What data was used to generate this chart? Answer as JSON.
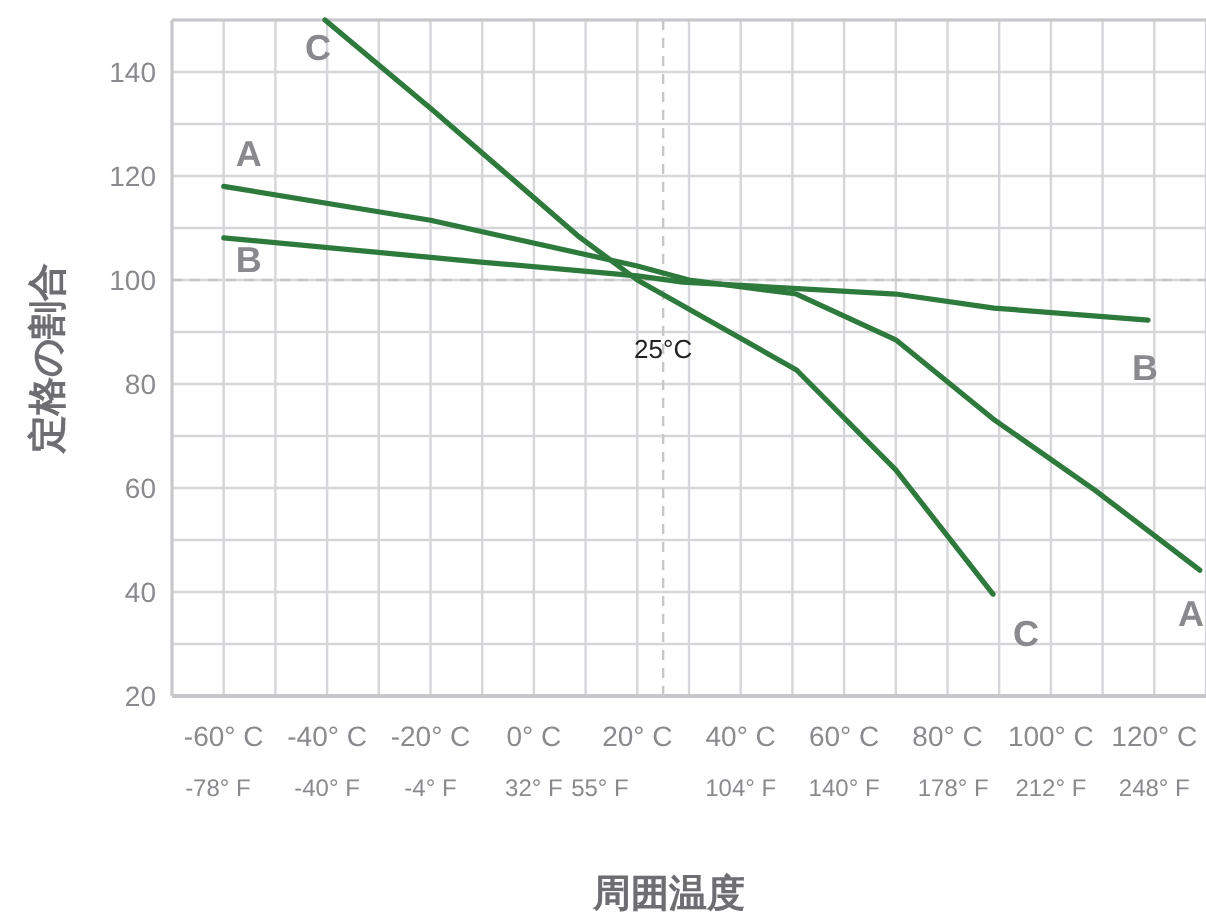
{
  "chart_data": {
    "type": "line",
    "xlabel": "周囲温度",
    "ylabel": "定格の割合",
    "xlim": [
      -70,
      130
    ],
    "ylim": [
      20,
      150
    ],
    "xticks": [
      {
        "value": -60,
        "label": "-60° C"
      },
      {
        "value": -40,
        "label": "-40° C"
      },
      {
        "value": -20,
        "label": "-20° C"
      },
      {
        "value": 0,
        "label": "0° C"
      },
      {
        "value": 20,
        "label": "20° C"
      },
      {
        "value": 40,
        "label": "40° C"
      },
      {
        "value": 60,
        "label": "60° C"
      },
      {
        "value": 80,
        "label": "80° C"
      },
      {
        "value": 100,
        "label": "100° C"
      },
      {
        "value": 120,
        "label": "120° C"
      }
    ],
    "x2lim": [
      -94,
      266
    ],
    "x2ticks": [
      {
        "value": -78,
        "label": "-78° F"
      },
      {
        "value": -40,
        "label": "-40° F"
      },
      {
        "value": -4,
        "label": "-4° F"
      },
      {
        "value": 32,
        "label": "32° F"
      },
      {
        "value": 55,
        "label": "55° F"
      },
      {
        "value": 104,
        "label": "104° F"
      },
      {
        "value": 140,
        "label": "140° F"
      },
      {
        "value": 178,
        "label": "178° F"
      },
      {
        "value": 212,
        "label": "212° F"
      },
      {
        "value": 248,
        "label": "248° F"
      }
    ],
    "yticks": [
      20,
      40,
      60,
      80,
      100,
      120,
      140
    ],
    "grid": true,
    "marker": "none",
    "line_style": "solid",
    "ref_lines": [
      {
        "axis": "x",
        "value": 25,
        "label": "25°C",
        "color": "#c8c8c8",
        "line_style": "dashed"
      },
      {
        "axis": "y",
        "value": 100,
        "color": "#c8c8c8",
        "line_style": "dashed"
      }
    ],
    "series": [
      {
        "name": "A",
        "color": "#2e7a3c",
        "x": [
          -60,
          -20,
          20,
          30,
          50.8,
          70,
          89.2,
          108.5,
          128.8
        ],
        "values": [
          118,
          111.5,
          102.7,
          100,
          97.3,
          88.5,
          73,
          59.6,
          44.2
        ]
      },
      {
        "name": "B",
        "color": "#2e7a3c",
        "x": [
          -60,
          -10.8,
          20,
          28.8,
          70,
          89,
          118.8
        ],
        "values": [
          108.1,
          103.5,
          100.8,
          99.6,
          97.3,
          94.6,
          92.3
        ]
      },
      {
        "name": "C",
        "color": "#2e7a3c",
        "x": [
          -40.4,
          -19.6,
          8.5,
          20,
          50.8,
          70,
          88.8
        ],
        "values": [
          150,
          132.7,
          108.5,
          100,
          82.7,
          63.5,
          39.6
        ]
      }
    ]
  }
}
